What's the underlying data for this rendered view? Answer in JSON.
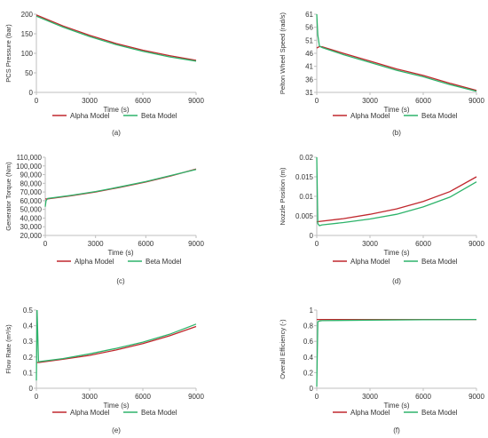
{
  "colors": {
    "alpha": "#c0272d",
    "beta": "#2db36a",
    "axis": "#bfbfbf",
    "text": "#333333"
  },
  "chart_data": [
    {
      "type": "line",
      "caption": "(a)",
      "xlabel": "Time (s)",
      "ylabel": "PCS Pressure (bar)",
      "xlim": [
        0,
        9000
      ],
      "ylim": [
        0,
        200
      ],
      "xticks": [
        "0",
        "3000",
        "6000",
        "9000"
      ],
      "xtick_values": [
        0,
        3000,
        6000,
        9000
      ],
      "yticks": [
        "0",
        "50",
        "100",
        "150",
        "200"
      ],
      "ytick_values": [
        0,
        50,
        100,
        150,
        200
      ],
      "series": [
        {
          "name": "Alpha Model",
          "x": [
            0,
            1500,
            3000,
            4500,
            6000,
            7500,
            9000
          ],
          "y": [
            198,
            170,
            146,
            125,
            108,
            94,
            82
          ]
        },
        {
          "name": "Beta Model",
          "x": [
            0,
            1500,
            3000,
            4500,
            6000,
            7500,
            9000
          ],
          "y": [
            195,
            167,
            143,
            122,
            105,
            91,
            80
          ]
        }
      ],
      "legend": "bottom"
    },
    {
      "type": "line",
      "caption": "(b)",
      "xlabel": "Time (s)",
      "ylabel": "Pelton Wheel Speed (rad/s)",
      "xlim": [
        0,
        9000
      ],
      "ylim": [
        31,
        61
      ],
      "xticks": [
        "0",
        "3000",
        "6000",
        "9000"
      ],
      "xtick_values": [
        0,
        3000,
        6000,
        9000
      ],
      "yticks": [
        "31",
        "36",
        "41",
        "46",
        "51",
        "56",
        "61"
      ],
      "ytick_values": [
        31,
        36,
        41,
        46,
        51,
        56,
        61
      ],
      "series": [
        {
          "name": "Alpha Model",
          "x": [
            0,
            150,
            300,
            1500,
            3000,
            4500,
            6000,
            7500,
            9000
          ],
          "y": [
            48,
            48.6,
            48.5,
            46,
            43,
            40,
            37.5,
            34.5,
            31.8
          ]
        },
        {
          "name": "Beta Model",
          "x": [
            0,
            60,
            150,
            300,
            1500,
            3000,
            4500,
            6000,
            7500,
            9000
          ],
          "y": [
            61,
            53,
            48.8,
            48.2,
            45.5,
            42.5,
            39.5,
            37,
            34,
            31.4
          ]
        }
      ],
      "legend": "bottom"
    },
    {
      "type": "line",
      "caption": "(c)",
      "xlabel": "Time (s)",
      "ylabel": "Generator Torque (Nm)",
      "xlim": [
        0,
        9000
      ],
      "ylim": [
        20000,
        110000
      ],
      "xticks": [
        "0",
        "3000",
        "6000",
        "9000"
      ],
      "xtick_values": [
        0,
        3000,
        6000,
        9000
      ],
      "yticks": [
        "20,000",
        "30,000",
        "40,000",
        "50,000",
        "60,000",
        "70,000",
        "80,000",
        "90,000",
        "100,000",
        "110,000"
      ],
      "ytick_values": [
        20000,
        30000,
        40000,
        50000,
        60000,
        70000,
        80000,
        90000,
        100000,
        110000
      ],
      "series": [
        {
          "name": "Alpha Model",
          "x": [
            0,
            150,
            1500,
            3000,
            4500,
            6000,
            7500,
            9000
          ],
          "y": [
            62000,
            62000,
            65500,
            70000,
            75500,
            81500,
            88500,
            96500
          ]
        },
        {
          "name": "Beta Model",
          "x": [
            0,
            50,
            150,
            1500,
            3000,
            4500,
            6000,
            7500,
            9000
          ],
          "y": [
            53000,
            60000,
            62500,
            66000,
            70500,
            76000,
            82000,
            89000,
            96000
          ]
        }
      ],
      "legend": "bottom"
    },
    {
      "type": "line",
      "caption": "(d)",
      "xlabel": "Time (s)",
      "ylabel": "Nozzle Position (m)",
      "xlim": [
        0,
        9000
      ],
      "ylim": [
        0,
        0.02
      ],
      "xticks": [
        "0",
        "3000",
        "6000",
        "9000"
      ],
      "xtick_values": [
        0,
        3000,
        6000,
        9000
      ],
      "yticks": [
        "0",
        "0.005",
        "0.01",
        "0.015",
        "0.02"
      ],
      "ytick_values": [
        0,
        0.005,
        0.01,
        0.015,
        0.02
      ],
      "series": [
        {
          "name": "Alpha Model",
          "x": [
            0,
            1500,
            3000,
            4500,
            6000,
            7500,
            9000
          ],
          "y": [
            0.0035,
            0.0043,
            0.0054,
            0.0068,
            0.0087,
            0.0112,
            0.015
          ]
        },
        {
          "name": "Beta Model",
          "x": [
            0,
            60,
            150,
            300,
            1500,
            3000,
            4500,
            6000,
            7500,
            9000
          ],
          "y": [
            0.02,
            0.003,
            0.0025,
            0.0027,
            0.0033,
            0.0042,
            0.0054,
            0.0073,
            0.0098,
            0.0137
          ]
        }
      ],
      "legend": "bottom"
    },
    {
      "type": "line",
      "caption": "(e)",
      "xlabel": "Time (s)",
      "ylabel": "Flow Rate (m³/s)",
      "xlim": [
        0,
        9000
      ],
      "ylim": [
        0,
        0.5
      ],
      "xticks": [
        "0",
        "3000",
        "6000",
        "9000"
      ],
      "xtick_values": [
        0,
        3000,
        6000,
        9000
      ],
      "yticks": [
        "0",
        "0.1",
        "0.2",
        "0.3",
        "0.4",
        "0.5"
      ],
      "ytick_values": [
        0,
        0.1,
        0.2,
        0.3,
        0.4,
        0.5
      ],
      "series": [
        {
          "name": "Alpha Model",
          "x": [
            0,
            150,
            1500,
            3000,
            4500,
            6000,
            7500,
            9000
          ],
          "y": [
            0.165,
            0.165,
            0.185,
            0.21,
            0.245,
            0.285,
            0.335,
            0.395
          ]
        },
        {
          "name": "Beta Model",
          "x": [
            0,
            40,
            120,
            300,
            1500,
            3000,
            4500,
            6000,
            7500,
            9000
          ],
          "y": [
            0.05,
            0.5,
            0.17,
            0.172,
            0.19,
            0.22,
            0.255,
            0.295,
            0.345,
            0.41
          ]
        }
      ],
      "legend": "bottom"
    },
    {
      "type": "line",
      "caption": "(f)",
      "xlabel": "Time (s)",
      "ylabel": "Overall Efficiency (-)",
      "xlim": [
        0,
        9000
      ],
      "ylim": [
        0,
        1
      ],
      "xticks": [
        "0",
        "3000",
        "6000",
        "9000"
      ],
      "xtick_values": [
        0,
        3000,
        6000,
        9000
      ],
      "yticks": [
        "0",
        "0.2",
        "0.4",
        "0.6",
        "0.8",
        "1"
      ],
      "ytick_values": [
        0,
        0.2,
        0.4,
        0.6,
        0.8,
        1
      ],
      "series": [
        {
          "name": "Alpha Model",
          "x": [
            0,
            3000,
            6000,
            9000
          ],
          "y": [
            0.88,
            0.88,
            0.88,
            0.88
          ]
        },
        {
          "name": "Beta Model",
          "x": [
            0,
            60,
            150,
            300,
            3000,
            6000,
            9000
          ],
          "y": [
            0.02,
            0.85,
            0.86,
            0.865,
            0.872,
            0.876,
            0.88
          ]
        }
      ],
      "legend": "bottom"
    }
  ]
}
